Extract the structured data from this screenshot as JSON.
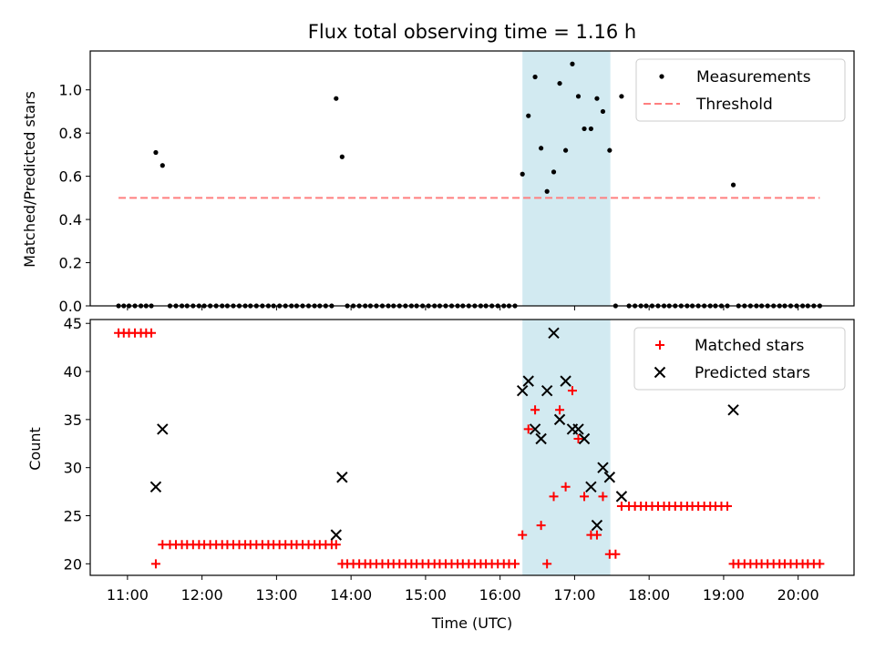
{
  "chart_data": [
    {
      "type": "scatter",
      "title": "Flux total observing time = 1.16 h",
      "xlabel": "",
      "ylabel": "Matched/Predicted stars",
      "xlim_hours": [
        10.5,
        20.75
      ],
      "ylim": [
        0,
        1.18
      ],
      "yticks": [
        0.0,
        0.2,
        0.4,
        0.6,
        0.8,
        1.0
      ],
      "ytick_labels": [
        "0.0",
        "0.2",
        "0.4",
        "0.6",
        "0.8",
        "1.0"
      ],
      "highlight_span_hours": [
        16.3,
        17.48
      ],
      "highlight_color": "#add8e6",
      "legend_position": "upper right",
      "series": [
        {
          "name": "Measurements",
          "color": "#000000",
          "marker": "dot",
          "points": [
            [
              10.88,
              0
            ],
            [
              10.95,
              0
            ],
            [
              11.02,
              0
            ],
            [
              11.1,
              0
            ],
            [
              11.18,
              0
            ],
            [
              11.25,
              0
            ],
            [
              11.32,
              0
            ],
            [
              11.38,
              0.71
            ],
            [
              11.47,
              0.65
            ],
            [
              11.57,
              0
            ],
            [
              11.65,
              0
            ],
            [
              11.73,
              0
            ],
            [
              11.8,
              0
            ],
            [
              11.88,
              0
            ],
            [
              11.96,
              0
            ],
            [
              12.03,
              0
            ],
            [
              12.11,
              0
            ],
            [
              12.19,
              0
            ],
            [
              12.27,
              0
            ],
            [
              12.34,
              0
            ],
            [
              12.42,
              0
            ],
            [
              12.5,
              0
            ],
            [
              12.58,
              0
            ],
            [
              12.65,
              0
            ],
            [
              12.73,
              0
            ],
            [
              12.81,
              0
            ],
            [
              12.89,
              0
            ],
            [
              12.96,
              0
            ],
            [
              13.04,
              0
            ],
            [
              13.12,
              0
            ],
            [
              13.2,
              0
            ],
            [
              13.27,
              0
            ],
            [
              13.35,
              0
            ],
            [
              13.43,
              0
            ],
            [
              13.51,
              0
            ],
            [
              13.58,
              0
            ],
            [
              13.66,
              0
            ],
            [
              13.74,
              0
            ],
            [
              13.8,
              0.96
            ],
            [
              13.88,
              0.69
            ],
            [
              13.95,
              0
            ],
            [
              14.03,
              0
            ],
            [
              14.11,
              0
            ],
            [
              14.19,
              0
            ],
            [
              14.26,
              0
            ],
            [
              14.34,
              0
            ],
            [
              14.42,
              0
            ],
            [
              14.5,
              0
            ],
            [
              14.57,
              0
            ],
            [
              14.65,
              0
            ],
            [
              14.73,
              0
            ],
            [
              14.81,
              0
            ],
            [
              14.88,
              0
            ],
            [
              14.96,
              0
            ],
            [
              15.04,
              0
            ],
            [
              15.12,
              0
            ],
            [
              15.19,
              0
            ],
            [
              15.27,
              0
            ],
            [
              15.35,
              0
            ],
            [
              15.43,
              0
            ],
            [
              15.5,
              0
            ],
            [
              15.58,
              0
            ],
            [
              15.66,
              0
            ],
            [
              15.74,
              0
            ],
            [
              15.81,
              0
            ],
            [
              15.89,
              0
            ],
            [
              15.97,
              0
            ],
            [
              16.05,
              0
            ],
            [
              16.12,
              0
            ],
            [
              16.2,
              0
            ],
            [
              16.3,
              0.61
            ],
            [
              16.38,
              0.88
            ],
            [
              16.47,
              1.06
            ],
            [
              16.55,
              0.73
            ],
            [
              16.63,
              0.53
            ],
            [
              16.72,
              0.62
            ],
            [
              16.8,
              1.03
            ],
            [
              16.88,
              0.72
            ],
            [
              16.97,
              1.12
            ],
            [
              17.05,
              0.97
            ],
            [
              17.13,
              0.82
            ],
            [
              17.22,
              0.82
            ],
            [
              17.3,
              0.96
            ],
            [
              17.38,
              0.9
            ],
            [
              17.47,
              0.72
            ],
            [
              17.55,
              0
            ],
            [
              17.63,
              0.97
            ],
            [
              17.73,
              0
            ],
            [
              17.81,
              0
            ],
            [
              17.89,
              0
            ],
            [
              17.96,
              0
            ],
            [
              18.04,
              0
            ],
            [
              18.12,
              0
            ],
            [
              18.2,
              0
            ],
            [
              18.27,
              0
            ],
            [
              18.35,
              0
            ],
            [
              18.43,
              0
            ],
            [
              18.51,
              0
            ],
            [
              18.58,
              0
            ],
            [
              18.66,
              0
            ],
            [
              18.74,
              0
            ],
            [
              18.82,
              0
            ],
            [
              18.89,
              0
            ],
            [
              18.97,
              0
            ],
            [
              19.05,
              0
            ],
            [
              19.13,
              0.56
            ],
            [
              19.2,
              0
            ],
            [
              19.28,
              0
            ],
            [
              19.36,
              0
            ],
            [
              19.44,
              0
            ],
            [
              19.51,
              0
            ],
            [
              19.59,
              0
            ],
            [
              19.67,
              0
            ],
            [
              19.75,
              0
            ],
            [
              19.82,
              0
            ],
            [
              19.9,
              0
            ],
            [
              19.98,
              0
            ],
            [
              20.06,
              0
            ],
            [
              20.13,
              0
            ],
            [
              20.21,
              0
            ],
            [
              20.29,
              0
            ]
          ]
        },
        {
          "name": "Threshold",
          "color": "#ff7f7f",
          "style": "dashed",
          "points": [
            [
              10.88,
              0.5
            ],
            [
              20.29,
              0.5
            ]
          ]
        }
      ]
    },
    {
      "type": "scatter",
      "title": "",
      "xlabel": "Time (UTC)",
      "ylabel": "Count",
      "xlim_hours": [
        10.5,
        20.75
      ],
      "ylim": [
        18.8,
        45.4
      ],
      "yticks": [
        20,
        25,
        30,
        35,
        40,
        45
      ],
      "ytick_labels": [
        "20",
        "25",
        "30",
        "35",
        "40",
        "45"
      ],
      "xticks_hours": [
        11,
        12,
        13,
        14,
        15,
        16,
        17,
        18,
        19,
        20
      ],
      "xtick_labels": [
        "11:00",
        "12:00",
        "13:00",
        "14:00",
        "15:00",
        "16:00",
        "17:00",
        "18:00",
        "19:00",
        "20:00"
      ],
      "highlight_span_hours": [
        16.3,
        17.48
      ],
      "highlight_color": "#add8e6",
      "legend_position": "upper right",
      "series": [
        {
          "name": "Matched stars",
          "color": "#ff0000",
          "marker": "plus",
          "points": [
            [
              10.88,
              44
            ],
            [
              10.95,
              44
            ],
            [
              11.02,
              44
            ],
            [
              11.1,
              44
            ],
            [
              11.18,
              44
            ],
            [
              11.25,
              44
            ],
            [
              11.32,
              44
            ],
            [
              11.38,
              20
            ],
            [
              11.47,
              22
            ],
            [
              11.57,
              22
            ],
            [
              11.65,
              22
            ],
            [
              11.73,
              22
            ],
            [
              11.8,
              22
            ],
            [
              11.88,
              22
            ],
            [
              11.96,
              22
            ],
            [
              12.03,
              22
            ],
            [
              12.11,
              22
            ],
            [
              12.19,
              22
            ],
            [
              12.27,
              22
            ],
            [
              12.34,
              22
            ],
            [
              12.42,
              22
            ],
            [
              12.5,
              22
            ],
            [
              12.58,
              22
            ],
            [
              12.65,
              22
            ],
            [
              12.73,
              22
            ],
            [
              12.81,
              22
            ],
            [
              12.89,
              22
            ],
            [
              12.96,
              22
            ],
            [
              13.04,
              22
            ],
            [
              13.12,
              22
            ],
            [
              13.2,
              22
            ],
            [
              13.27,
              22
            ],
            [
              13.35,
              22
            ],
            [
              13.43,
              22
            ],
            [
              13.51,
              22
            ],
            [
              13.58,
              22
            ],
            [
              13.66,
              22
            ],
            [
              13.74,
              22
            ],
            [
              13.8,
              22
            ],
            [
              13.88,
              20
            ],
            [
              13.95,
              20
            ],
            [
              14.03,
              20
            ],
            [
              14.11,
              20
            ],
            [
              14.19,
              20
            ],
            [
              14.26,
              20
            ],
            [
              14.34,
              20
            ],
            [
              14.42,
              20
            ],
            [
              14.5,
              20
            ],
            [
              14.57,
              20
            ],
            [
              14.65,
              20
            ],
            [
              14.73,
              20
            ],
            [
              14.81,
              20
            ],
            [
              14.88,
              20
            ],
            [
              14.96,
              20
            ],
            [
              15.04,
              20
            ],
            [
              15.12,
              20
            ],
            [
              15.19,
              20
            ],
            [
              15.27,
              20
            ],
            [
              15.35,
              20
            ],
            [
              15.43,
              20
            ],
            [
              15.5,
              20
            ],
            [
              15.58,
              20
            ],
            [
              15.66,
              20
            ],
            [
              15.74,
              20
            ],
            [
              15.81,
              20
            ],
            [
              15.89,
              20
            ],
            [
              15.97,
              20
            ],
            [
              16.05,
              20
            ],
            [
              16.12,
              20
            ],
            [
              16.2,
              20
            ],
            [
              16.3,
              23
            ],
            [
              16.38,
              34
            ],
            [
              16.47,
              36
            ],
            [
              16.55,
              24
            ],
            [
              16.63,
              20
            ],
            [
              16.72,
              27
            ],
            [
              16.8,
              36
            ],
            [
              16.88,
              28
            ],
            [
              16.97,
              38
            ],
            [
              17.05,
              33
            ],
            [
              17.13,
              27
            ],
            [
              17.22,
              23
            ],
            [
              17.3,
              23
            ],
            [
              17.38,
              27
            ],
            [
              17.47,
              21
            ],
            [
              17.55,
              21
            ],
            [
              17.63,
              26
            ],
            [
              17.73,
              26
            ],
            [
              17.81,
              26
            ],
            [
              17.89,
              26
            ],
            [
              17.96,
              26
            ],
            [
              18.04,
              26
            ],
            [
              18.12,
              26
            ],
            [
              18.2,
              26
            ],
            [
              18.27,
              26
            ],
            [
              18.35,
              26
            ],
            [
              18.43,
              26
            ],
            [
              18.51,
              26
            ],
            [
              18.58,
              26
            ],
            [
              18.66,
              26
            ],
            [
              18.74,
              26
            ],
            [
              18.82,
              26
            ],
            [
              18.89,
              26
            ],
            [
              18.97,
              26
            ],
            [
              19.05,
              26
            ],
            [
              19.13,
              20
            ],
            [
              19.2,
              20
            ],
            [
              19.28,
              20
            ],
            [
              19.36,
              20
            ],
            [
              19.44,
              20
            ],
            [
              19.51,
              20
            ],
            [
              19.59,
              20
            ],
            [
              19.67,
              20
            ],
            [
              19.75,
              20
            ],
            [
              19.82,
              20
            ],
            [
              19.9,
              20
            ],
            [
              19.98,
              20
            ],
            [
              20.06,
              20
            ],
            [
              20.13,
              20
            ],
            [
              20.21,
              20
            ],
            [
              20.29,
              20
            ]
          ]
        },
        {
          "name": "Predicted stars",
          "color": "#000000",
          "marker": "x",
          "points": [
            [
              11.38,
              28
            ],
            [
              11.47,
              34
            ],
            [
              13.8,
              23
            ],
            [
              13.88,
              29
            ],
            [
              16.3,
              38
            ],
            [
              16.38,
              39
            ],
            [
              16.47,
              34
            ],
            [
              16.55,
              33
            ],
            [
              16.63,
              38
            ],
            [
              16.72,
              44
            ],
            [
              16.8,
              35
            ],
            [
              16.88,
              39
            ],
            [
              16.97,
              34
            ],
            [
              17.05,
              34
            ],
            [
              17.13,
              33
            ],
            [
              17.22,
              28
            ],
            [
              17.3,
              24
            ],
            [
              17.38,
              30
            ],
            [
              17.47,
              29
            ],
            [
              17.63,
              27
            ],
            [
              19.13,
              36
            ]
          ]
        }
      ]
    }
  ]
}
